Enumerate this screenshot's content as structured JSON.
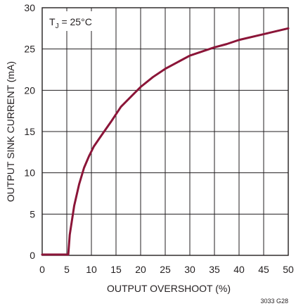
{
  "chart_data": {
    "type": "line",
    "xlabel": "OUTPUT OVERSHOOT (%)",
    "ylabel": "OUTPUT SINK CURRENT (mA)",
    "annotation": {
      "prefix": "T",
      "subscript": "J",
      "suffix": " = 25°C"
    },
    "figure_id": "3033 G28",
    "xlim": [
      0,
      50
    ],
    "ylim": [
      0,
      30
    ],
    "x_ticks": [
      "0",
      "5",
      "10",
      "15",
      "20",
      "25",
      "30",
      "35",
      "40",
      "45",
      "50"
    ],
    "y_ticks": [
      "0",
      "5",
      "10",
      "15",
      "20",
      "25",
      "30"
    ],
    "grid": true,
    "colors": {
      "curve": "#8b1538",
      "grid": "#231f20"
    },
    "series": [
      {
        "x": [
          0,
          5.3,
          5.6,
          6.5,
          7.5,
          8.5,
          9.5,
          10.5,
          12,
          14,
          16,
          18,
          20,
          22.5,
          25,
          27.5,
          30,
          32.5,
          35,
          37.5,
          40,
          45,
          50
        ],
        "y": [
          0.1,
          0.1,
          2.5,
          6.0,
          8.6,
          10.6,
          12.0,
          13.2,
          14.5,
          16.2,
          18.0,
          19.2,
          20.4,
          21.6,
          22.6,
          23.4,
          24.2,
          24.7,
          25.2,
          25.6,
          26.1,
          26.8,
          27.5
        ]
      }
    ]
  }
}
